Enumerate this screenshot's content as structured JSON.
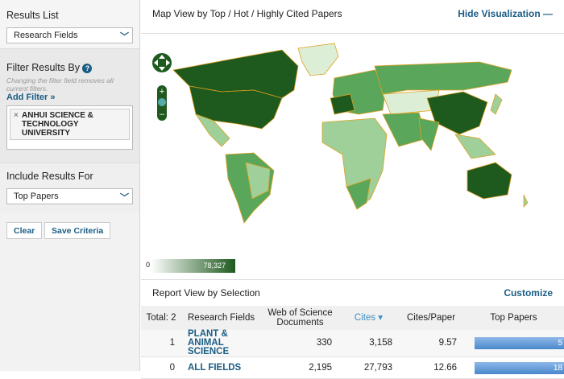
{
  "sidebar": {
    "results_list": {
      "label": "Results List",
      "value": "Research Fields"
    },
    "filter": {
      "label": "Filter Results By",
      "help_icon": "question-circle-icon",
      "note": "Changing the filter field removes all current filters.",
      "add_filter": "Add Filter »",
      "chips": [
        "ANHUI SCIENCE & TECHNOLOGY UNIVERSITY"
      ]
    },
    "include": {
      "label": "Include Results For",
      "value": "Top Papers"
    },
    "buttons": {
      "clear": "Clear",
      "save": "Save Criteria"
    }
  },
  "map": {
    "title": "Map View by Top / Hot / Highly Cited Papers",
    "hide_label": "Hide Visualization",
    "legend_min": "0",
    "legend_max": "78,327",
    "colors": {
      "dark": "#1e5a1e",
      "mid": "#5aa65a",
      "light": "#9fd09a",
      "pale": "#dcefd6",
      "border": "#e0a020"
    }
  },
  "report": {
    "title": "Report View by Selection",
    "customize": "Customize",
    "headers": {
      "total": "Total: 2",
      "field": "Research Fields",
      "docs": "Web of Science Documents",
      "cites": "Cites ▾",
      "cpp": "Cites/Paper",
      "top": "Top Papers"
    },
    "rows": [
      {
        "rank": "1",
        "field": "PLANT & ANIMAL SCIENCE",
        "docs": "330",
        "cites": "3,158",
        "cpp": "9.57",
        "top": "5"
      },
      {
        "rank": "0",
        "field": "ALL FIELDS",
        "docs": "2,195",
        "cites": "27,793",
        "cpp": "12.66",
        "top": "18"
      }
    ]
  }
}
